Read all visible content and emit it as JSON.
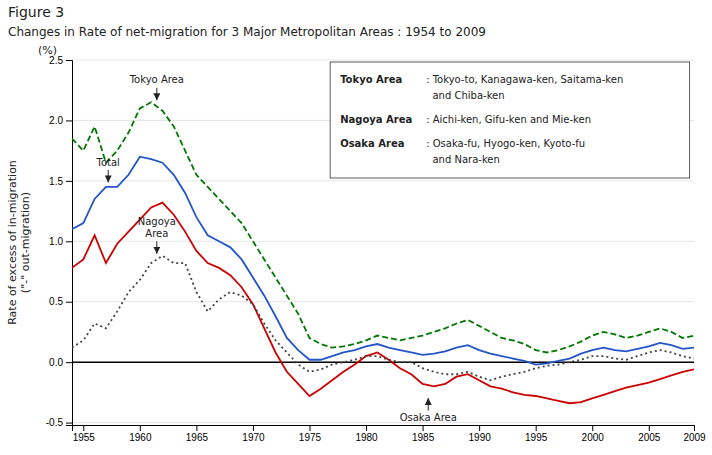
{
  "chart_data": {
    "type": "line",
    "title": "Figure 3",
    "subtitle": "Changes in Rate of net-migration for 3 Major Metropolitan Areas : 1954 to 2009",
    "ylabel": "Rate of excess of in-migration\n(\"-\" out-migration)",
    "xlim": [
      1954,
      2009
    ],
    "ylim": [
      -0.52,
      2.5
    ],
    "xticks": [
      1955,
      1960,
      1965,
      1970,
      1975,
      1980,
      1985,
      1990,
      1995,
      2000,
      2005,
      2009
    ],
    "yticks": [
      -0.5,
      {
        "value": 0,
        "label": "0.0"
      },
      0.5,
      {
        "value": 1,
        "label": "1.0"
      },
      1.5,
      {
        "value": 2,
        "label": "2.0"
      },
      2.5
    ],
    "x": [
      1954,
      1955,
      1956,
      1957,
      1958,
      1959,
      1960,
      1961,
      1962,
      1963,
      1964,
      1965,
      1966,
      1967,
      1968,
      1969,
      1970,
      1971,
      1972,
      1973,
      1974,
      1975,
      1976,
      1977,
      1978,
      1979,
      1980,
      1981,
      1982,
      1983,
      1984,
      1985,
      1986,
      1987,
      1988,
      1989,
      1990,
      1991,
      1992,
      1993,
      1994,
      1995,
      1996,
      1997,
      1998,
      1999,
      2000,
      2001,
      2002,
      2003,
      2004,
      2005,
      2006,
      2007,
      2008,
      2009
    ],
    "series": [
      {
        "color": "#007700",
        "line_style": "dashed",
        "values": [
          1.85,
          1.75,
          1.95,
          1.65,
          1.75,
          1.9,
          2.1,
          2.15,
          2.08,
          1.95,
          1.75,
          1.55,
          1.45,
          1.35,
          1.25,
          1.15,
          1.0,
          0.85,
          0.7,
          0.55,
          0.4,
          0.2,
          0.15,
          0.12,
          0.13,
          0.15,
          0.18,
          0.22,
          0.2,
          0.18,
          0.2,
          0.22,
          0.25,
          0.28,
          0.32,
          0.35,
          0.3,
          0.25,
          0.2,
          0.18,
          0.15,
          0.1,
          0.08,
          0.1,
          0.13,
          0.17,
          0.22,
          0.25,
          0.23,
          0.2,
          0.22,
          0.25,
          0.28,
          0.25,
          0.2,
          0.22
        ]
      },
      {
        "color": "#cc0000",
        "line_style": "solid",
        "values": [
          0.78,
          0.85,
          1.05,
          0.82,
          0.98,
          1.08,
          1.18,
          1.28,
          1.32,
          1.22,
          1.08,
          0.92,
          0.82,
          0.78,
          0.72,
          0.62,
          0.48,
          0.28,
          0.08,
          -0.08,
          -0.18,
          -0.28,
          -0.22,
          -0.15,
          -0.08,
          -0.02,
          0.05,
          0.08,
          0.02,
          -0.05,
          -0.1,
          -0.18,
          -0.2,
          -0.18,
          -0.12,
          -0.1,
          -0.15,
          -0.2,
          -0.22,
          -0.25,
          -0.27,
          -0.28,
          -0.3,
          -0.32,
          -0.34,
          -0.33,
          -0.3,
          -0.27,
          -0.24,
          -0.21,
          -0.19,
          -0.17,
          -0.14,
          -0.11,
          -0.08,
          -0.06
        ]
      },
      {
        "color": "#444444",
        "line_style": "dotted",
        "values": [
          0.12,
          0.18,
          0.32,
          0.28,
          0.42,
          0.58,
          0.68,
          0.82,
          0.88,
          0.82,
          0.82,
          0.58,
          0.42,
          0.52,
          0.58,
          0.55,
          0.48,
          0.32,
          0.18,
          0.08,
          -0.02,
          -0.08,
          -0.06,
          -0.02,
          0.0,
          0.02,
          0.05,
          0.05,
          0.02,
          0.0,
          0.0,
          -0.05,
          -0.08,
          -0.1,
          -0.1,
          -0.08,
          -0.12,
          -0.15,
          -0.12,
          -0.1,
          -0.08,
          -0.05,
          -0.03,
          -0.02,
          0.0,
          0.02,
          0.05,
          0.05,
          0.03,
          0.02,
          0.05,
          0.08,
          0.1,
          0.08,
          0.05,
          0.03
        ]
      },
      {
        "color": "#2255cc",
        "line_style": "solid",
        "values": [
          1.1,
          1.15,
          1.35,
          1.45,
          1.45,
          1.55,
          1.7,
          1.68,
          1.65,
          1.55,
          1.4,
          1.2,
          1.05,
          1.0,
          0.95,
          0.85,
          0.7,
          0.55,
          0.38,
          0.2,
          0.1,
          0.02,
          0.02,
          0.05,
          0.08,
          0.1,
          0.13,
          0.15,
          0.12,
          0.1,
          0.08,
          0.06,
          0.07,
          0.09,
          0.12,
          0.14,
          0.1,
          0.07,
          0.05,
          0.03,
          0.01,
          -0.02,
          -0.01,
          0.01,
          0.03,
          0.07,
          0.1,
          0.12,
          0.1,
          0.09,
          0.11,
          0.13,
          0.16,
          0.14,
          0.11,
          0.12
        ]
      }
    ],
    "annotations": [
      {
        "text": "(%)"
      },
      {
        "text": "Tokyo Area",
        "x": 1961.5,
        "y": 2.15,
        "position": "above"
      },
      {
        "text": "Total",
        "x": 1957.2,
        "y": 1.47,
        "position": "above"
      },
      {
        "text": "Nagoya\nArea",
        "x": 1961.5,
        "y": 0.88,
        "position": "above"
      },
      {
        "text": "Osaka Area",
        "x": 1985.5,
        "y": -0.28,
        "position": "below"
      }
    ],
    "notes": [
      {
        "label": "Tokyo Area",
        "lines": [
          ": Tokyo-to, Kanagawa-ken, Saitama-ken",
          "  and Chiba-ken"
        ]
      },
      {
        "label": "Nagoya Area",
        "lines": [
          ": Aichi-ken, Gifu-ken and Mie-ken"
        ]
      },
      {
        "label": "Osaka Area",
        "lines": [
          ": Osaka-fu, Hyogo-ken, Kyoto-fu",
          "  and Nara-ken"
        ]
      }
    ]
  }
}
